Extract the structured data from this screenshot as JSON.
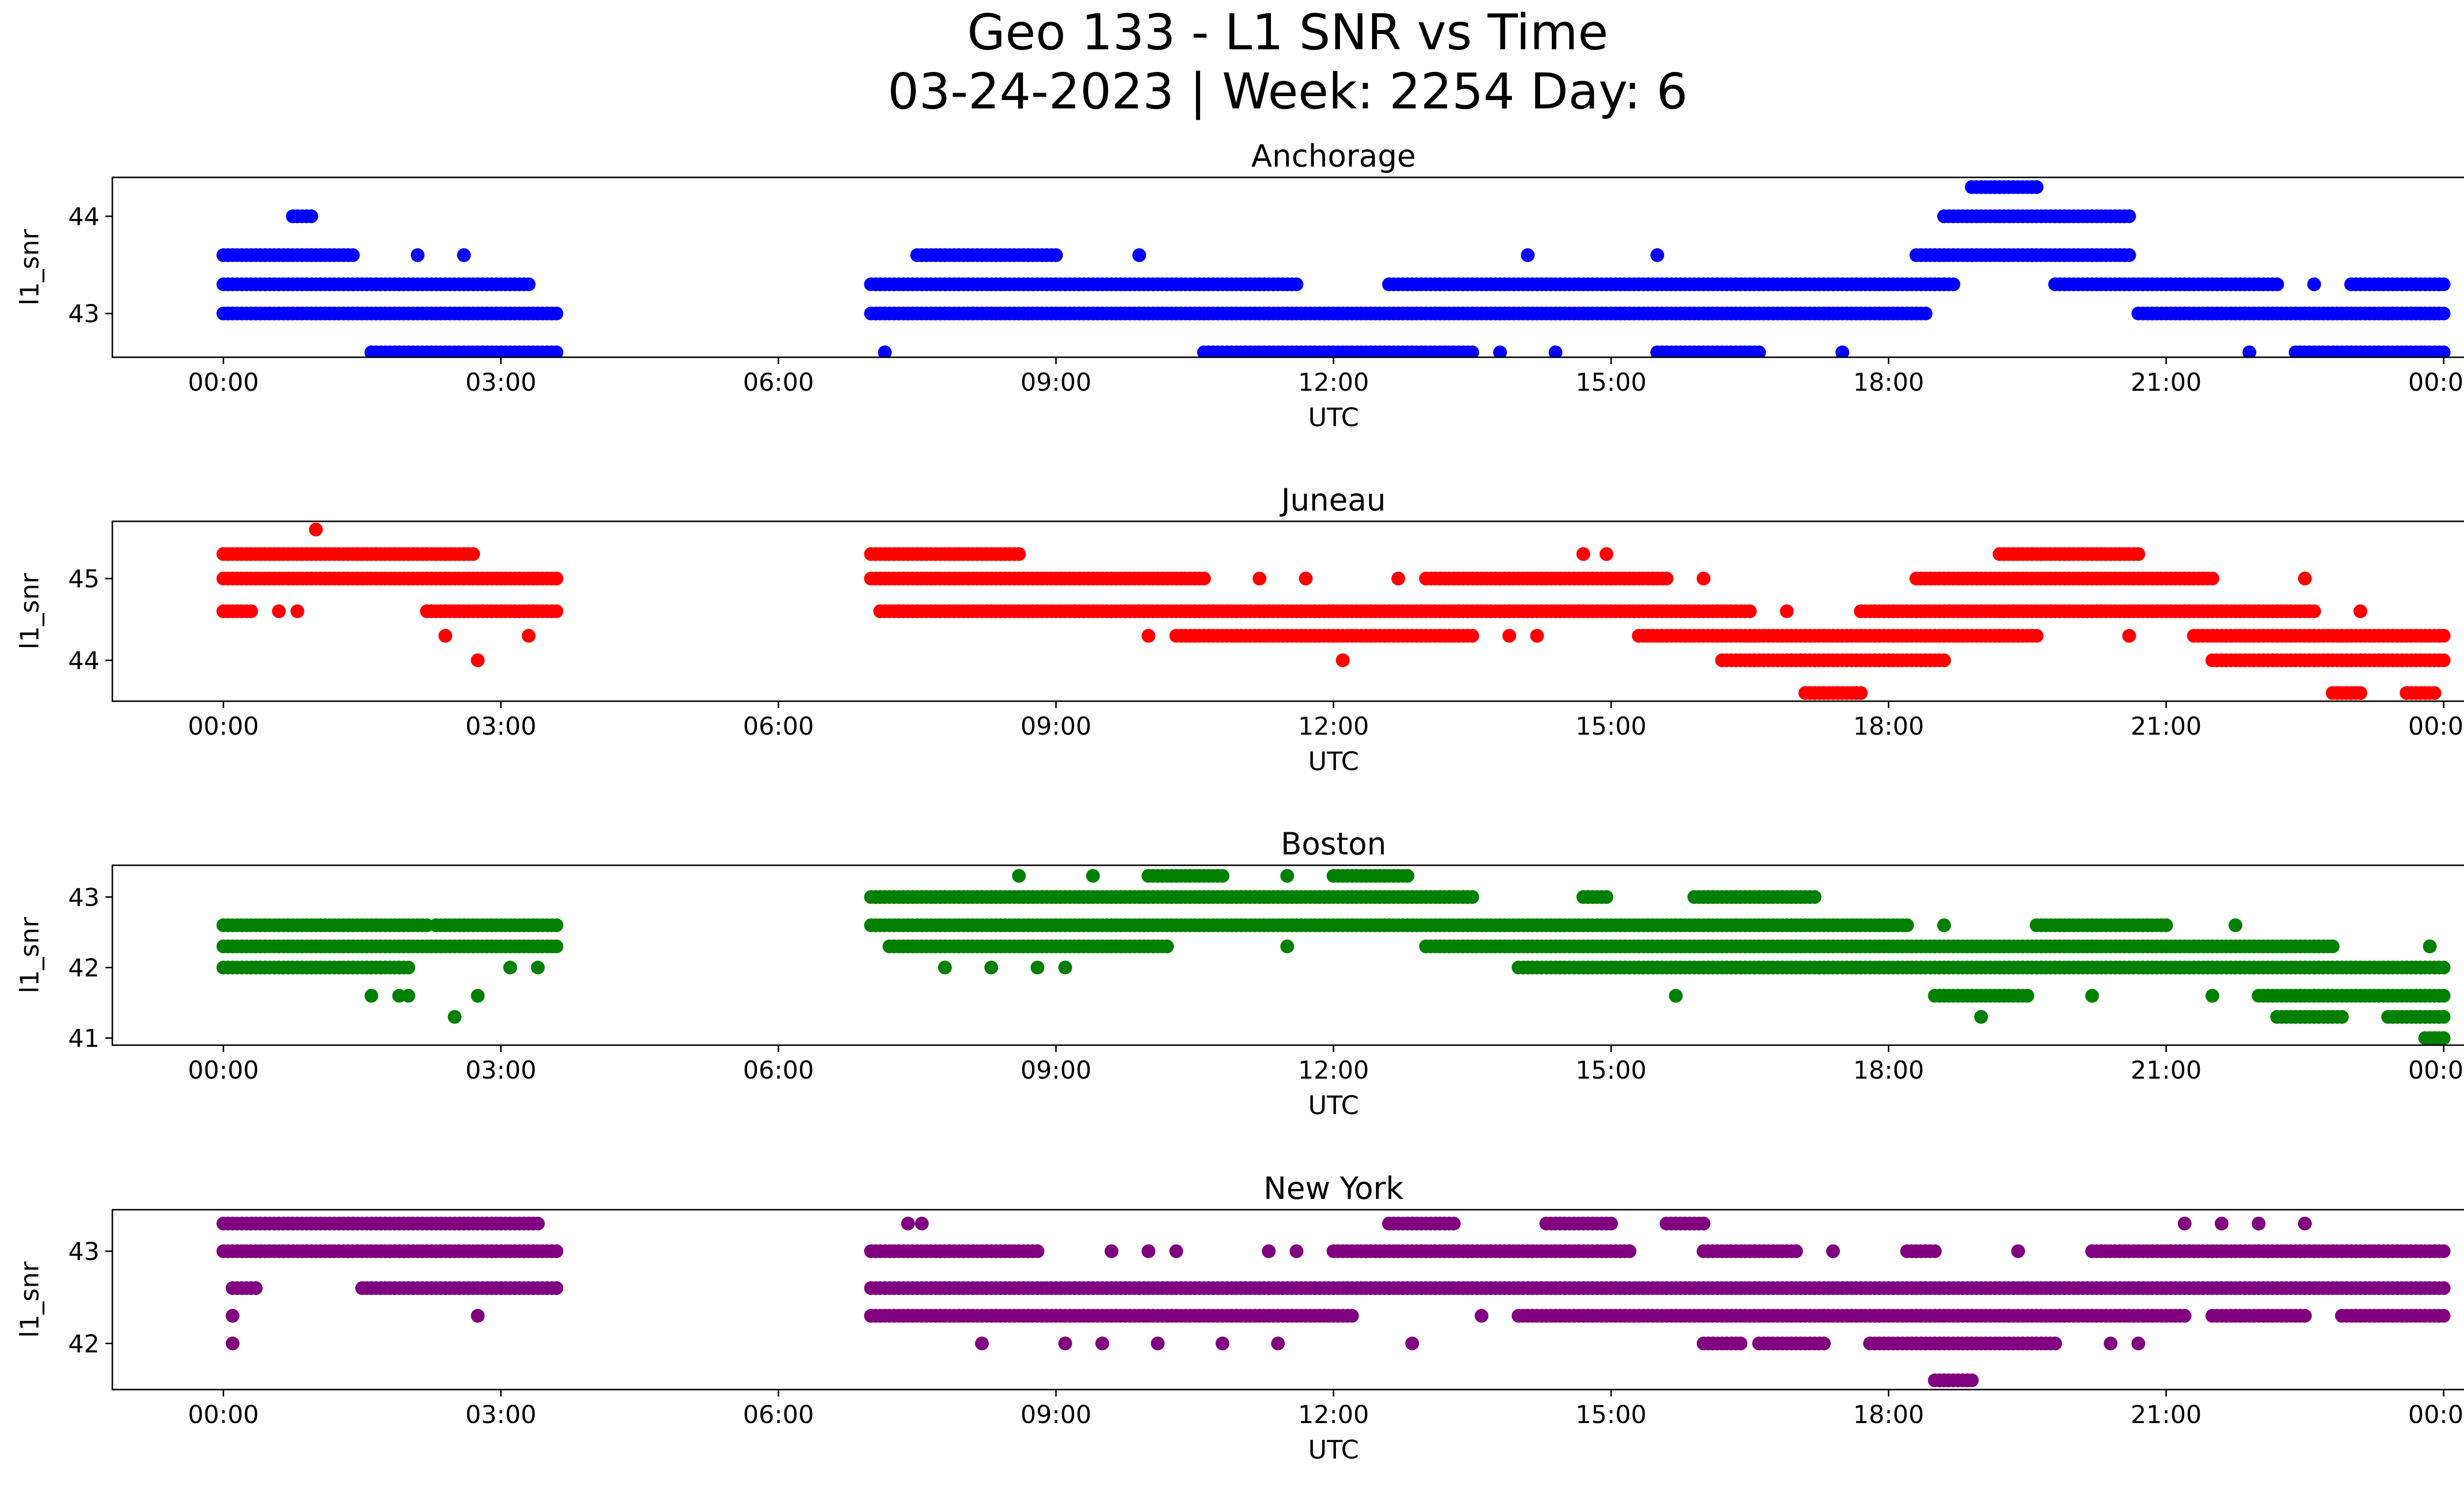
{
  "title": "Geo 133 - L1 SNR vs Time",
  "subtitle": "03-24-2023 | Week: 2254 Day: 6",
  "chart_data": [
    {
      "type": "scatter",
      "title": "Anchorage",
      "xlabel": "UTC",
      "ylabel": "l1_snr",
      "color": "#0000ff",
      "x_ticks": [
        "00:00",
        "03:00",
        "06:00",
        "09:00",
        "12:00",
        "15:00",
        "18:00",
        "21:00",
        "00:00"
      ],
      "xlim_hours": [
        -1.2,
        25.2
      ],
      "ylim": [
        42.55,
        44.4
      ],
      "yticks": [
        43,
        44
      ],
      "grid": false,
      "series": [
        {
          "name": "",
          "bands": [
            {
              "y": 43.0,
              "x": [
                [
                  0.0,
                  3.6
                ],
                [
                  7.0,
                  18.4
                ],
                [
                  20.7,
                  24.0
                ]
              ]
            },
            {
              "y": 43.3,
              "x": [
                [
                  0.0,
                  3.3
                ],
                [
                  7.0,
                  11.6
                ],
                [
                  12.6,
                  18.7
                ],
                [
                  19.8,
                  22.2
                ],
                [
                  23.0,
                  24.0
                ]
              ]
            },
            {
              "y": 43.6,
              "x": [
                [
                  0.0,
                  1.4
                ],
                [
                  7.5,
                  9.0
                ],
                [
                  18.3,
                  20.6
                ]
              ]
            },
            {
              "y": 44.0,
              "x": [
                [
                  0.75,
                  0.95
                ],
                [
                  18.6,
                  20.6
                ]
              ]
            },
            {
              "y": 44.3,
              "x": [
                [
                  18.9,
                  19.6
                ]
              ]
            },
            {
              "y": 42.6,
              "x": [
                [
                  1.6,
                  3.6
                ],
                [
                  10.6,
                  13.5
                ],
                [
                  15.5,
                  16.6
                ],
                [
                  22.4,
                  24.0
                ]
              ]
            }
          ],
          "points": [
            [
              7.15,
              42.6
            ],
            [
              14.1,
              43.6
            ],
            [
              15.5,
              43.6
            ],
            [
              17.5,
              42.6
            ],
            [
              21.9,
              42.6
            ],
            [
              22.6,
              43.3
            ],
            [
              2.1,
              43.6
            ],
            [
              2.6,
              43.6
            ],
            [
              9.9,
              43.6
            ],
            [
              11.2,
              43.3
            ],
            [
              13.8,
              42.6
            ],
            [
              14.4,
              42.6
            ]
          ]
        }
      ]
    },
    {
      "type": "scatter",
      "title": "Juneau",
      "xlabel": "UTC",
      "ylabel": "l1_snr",
      "color": "#ff0000",
      "x_ticks": [
        "00:00",
        "03:00",
        "06:00",
        "09:00",
        "12:00",
        "15:00",
        "18:00",
        "21:00",
        "00:00"
      ],
      "xlim_hours": [
        -1.2,
        25.2
      ],
      "ylim": [
        43.5,
        45.7
      ],
      "yticks": [
        44,
        45
      ],
      "grid": false,
      "series": [
        {
          "name": "",
          "bands": [
            {
              "y": 45.3,
              "x": [
                [
                  0.0,
                  2.7
                ],
                [
                  7.0,
                  8.6
                ],
                [
                  19.2,
                  20.7
                ]
              ]
            },
            {
              "y": 45.0,
              "x": [
                [
                  0.0,
                  3.6
                ],
                [
                  7.0,
                  10.6
                ],
                [
                  13.0,
                  15.6
                ],
                [
                  18.3,
                  21.5
                ]
              ]
            },
            {
              "y": 44.6,
              "x": [
                [
                  0.0,
                  0.3
                ],
                [
                  2.2,
                  3.6
                ],
                [
                  7.1,
                  16.5
                ],
                [
                  17.7,
                  22.6
                ]
              ]
            },
            {
              "y": 44.3,
              "x": [
                [
                  10.3,
                  13.5
                ],
                [
                  15.3,
                  19.6
                ],
                [
                  21.3,
                  24.0
                ]
              ]
            },
            {
              "y": 44.0,
              "x": [
                [
                  16.2,
                  18.6
                ],
                [
                  21.5,
                  24.0
                ]
              ]
            },
            {
              "y": 43.6,
              "x": [
                [
                  17.1,
                  17.7
                ],
                [
                  22.8,
                  23.1
                ],
                [
                  23.6,
                  23.9
                ]
              ]
            }
          ],
          "points": [
            [
              1.0,
              45.6
            ],
            [
              0.6,
              44.6
            ],
            [
              0.8,
              44.6
            ],
            [
              2.4,
              44.3
            ],
            [
              2.75,
              44.0
            ],
            [
              3.3,
              44.3
            ],
            [
              12.1,
              44.0
            ],
            [
              11.2,
              45.0
            ],
            [
              11.7,
              45.0
            ],
            [
              12.7,
              45.0
            ],
            [
              14.7,
              45.3
            ],
            [
              14.95,
              45.3
            ],
            [
              16.0,
              45.0
            ],
            [
              22.5,
              45.0
            ],
            [
              23.1,
              44.6
            ],
            [
              10.0,
              44.3
            ],
            [
              13.9,
              44.3
            ],
            [
              14.2,
              44.3
            ],
            [
              16.9,
              44.6
            ],
            [
              19.2,
              44.3
            ],
            [
              20.6,
              44.3
            ]
          ]
        }
      ]
    },
    {
      "type": "scatter",
      "title": "Boston",
      "xlabel": "UTC",
      "ylabel": "l1_snr",
      "color": "#008000",
      "x_ticks": [
        "00:00",
        "03:00",
        "06:00",
        "09:00",
        "12:00",
        "15:00",
        "18:00",
        "21:00",
        "00:00"
      ],
      "xlim_hours": [
        -1.2,
        25.2
      ],
      "ylim": [
        40.9,
        43.45
      ],
      "yticks": [
        41,
        42,
        43
      ],
      "grid": false,
      "series": [
        {
          "name": "",
          "bands": [
            {
              "y": 43.3,
              "x": [
                [
                  10.0,
                  10.8
                ],
                [
                  12.0,
                  12.8
                ]
              ]
            },
            {
              "y": 43.0,
              "x": [
                [
                  7.0,
                  13.5
                ],
                [
                  14.7,
                  14.95
                ],
                [
                  15.9,
                  17.2
                ]
              ]
            },
            {
              "y": 42.6,
              "x": [
                [
                  0.0,
                  2.2
                ],
                [
                  2.3,
                  3.6
                ],
                [
                  7.0,
                  18.2
                ],
                [
                  19.6,
                  21.0
                ]
              ]
            },
            {
              "y": 42.3,
              "x": [
                [
                  0.0,
                  3.6
                ],
                [
                  7.2,
                  10.2
                ],
                [
                  13.0,
                  22.8
                ]
              ]
            },
            {
              "y": 42.0,
              "x": [
                [
                  0.0,
                  2.0
                ],
                [
                  14.0,
                  24.0
                ]
              ]
            },
            {
              "y": 41.6,
              "x": [
                [
                  18.5,
                  19.5
                ],
                [
                  22.0,
                  24.0
                ]
              ]
            },
            {
              "y": 41.3,
              "x": [
                [
                  22.2,
                  22.9
                ],
                [
                  23.4,
                  24.0
                ]
              ]
            },
            {
              "y": 41.0,
              "x": [
                [
                  23.8,
                  24.0
                ]
              ]
            }
          ],
          "points": [
            [
              1.6,
              41.6
            ],
            [
              1.9,
              41.6
            ],
            [
              2.0,
              41.6
            ],
            [
              2.5,
              41.3
            ],
            [
              2.75,
              41.6
            ],
            [
              3.1,
              42.0
            ],
            [
              3.4,
              42.0
            ],
            [
              8.6,
              43.3
            ],
            [
              9.4,
              43.3
            ],
            [
              11.5,
              43.3
            ],
            [
              7.8,
              42.0
            ],
            [
              8.3,
              42.0
            ],
            [
              8.8,
              42.0
            ],
            [
              9.1,
              42.0
            ],
            [
              15.7,
              41.6
            ],
            [
              18.6,
              42.6
            ],
            [
              19.0,
              41.3
            ],
            [
              20.2,
              41.6
            ],
            [
              21.5,
              41.6
            ],
            [
              21.75,
              42.6
            ],
            [
              23.85,
              42.3
            ],
            [
              11.5,
              42.3
            ]
          ]
        }
      ]
    },
    {
      "type": "scatter",
      "title": "New York",
      "xlabel": "UTC",
      "ylabel": "l1_snr",
      "color": "#800080",
      "x_ticks": [
        "00:00",
        "03:00",
        "06:00",
        "09:00",
        "12:00",
        "15:00",
        "18:00",
        "21:00",
        "00:00"
      ],
      "xlim_hours": [
        -1.2,
        25.2
      ],
      "ylim": [
        41.5,
        43.45
      ],
      "yticks": [
        42,
        43
      ],
      "grid": false,
      "series": [
        {
          "name": "",
          "bands": [
            {
              "y": 43.3,
              "x": [
                [
                  0.0,
                  3.4
                ],
                [
                  12.6,
                  13.3
                ],
                [
                  14.3,
                  15.0
                ],
                [
                  15.6,
                  16.0
                ]
              ]
            },
            {
              "y": 43.0,
              "x": [
                [
                  0.0,
                  3.6
                ],
                [
                  7.0,
                  8.8
                ],
                [
                  12.0,
                  15.2
                ],
                [
                  16.0,
                  17.0
                ],
                [
                  18.2,
                  18.5
                ],
                [
                  20.2,
                  24.0
                ]
              ]
            },
            {
              "y": 42.6,
              "x": [
                [
                  0.1,
                  0.35
                ],
                [
                  1.5,
                  3.6
                ],
                [
                  7.0,
                  24.0
                ]
              ]
            },
            {
              "y": 42.3,
              "x": [
                [
                  7.0,
                  12.2
                ],
                [
                  14.0,
                  21.2
                ],
                [
                  21.5,
                  22.5
                ],
                [
                  22.9,
                  24.0
                ]
              ]
            },
            {
              "y": 42.0,
              "x": [
                [
                  16.0,
                  16.4
                ],
                [
                  16.6,
                  17.3
                ],
                [
                  17.8,
                  19.8
                ]
              ]
            },
            {
              "y": 41.6,
              "x": [
                [
                  18.5,
                  18.9
                ]
              ]
            }
          ],
          "points": [
            [
              0.1,
              42.3
            ],
            [
              0.1,
              42.0
            ],
            [
              2.75,
              42.3
            ],
            [
              7.4,
              43.3
            ],
            [
              7.55,
              43.3
            ],
            [
              8.2,
              42.0
            ],
            [
              9.1,
              42.0
            ],
            [
              9.5,
              42.0
            ],
            [
              10.1,
              42.0
            ],
            [
              10.8,
              42.0
            ],
            [
              11.4,
              42.0
            ],
            [
              12.85,
              42.0
            ],
            [
              13.6,
              42.3
            ],
            [
              9.6,
              43.0
            ],
            [
              10.0,
              43.0
            ],
            [
              10.3,
              43.0
            ],
            [
              11.3,
              43.0
            ],
            [
              11.6,
              43.0
            ],
            [
              17.4,
              43.0
            ],
            [
              19.4,
              43.0
            ],
            [
              21.2,
              43.3
            ],
            [
              21.6,
              43.3
            ],
            [
              22.0,
              43.3
            ],
            [
              22.5,
              43.3
            ],
            [
              20.4,
              42.0
            ],
            [
              20.7,
              42.0
            ],
            [
              13.3,
              43.0
            ],
            [
              19.3,
              42.3
            ]
          ]
        }
      ]
    }
  ]
}
